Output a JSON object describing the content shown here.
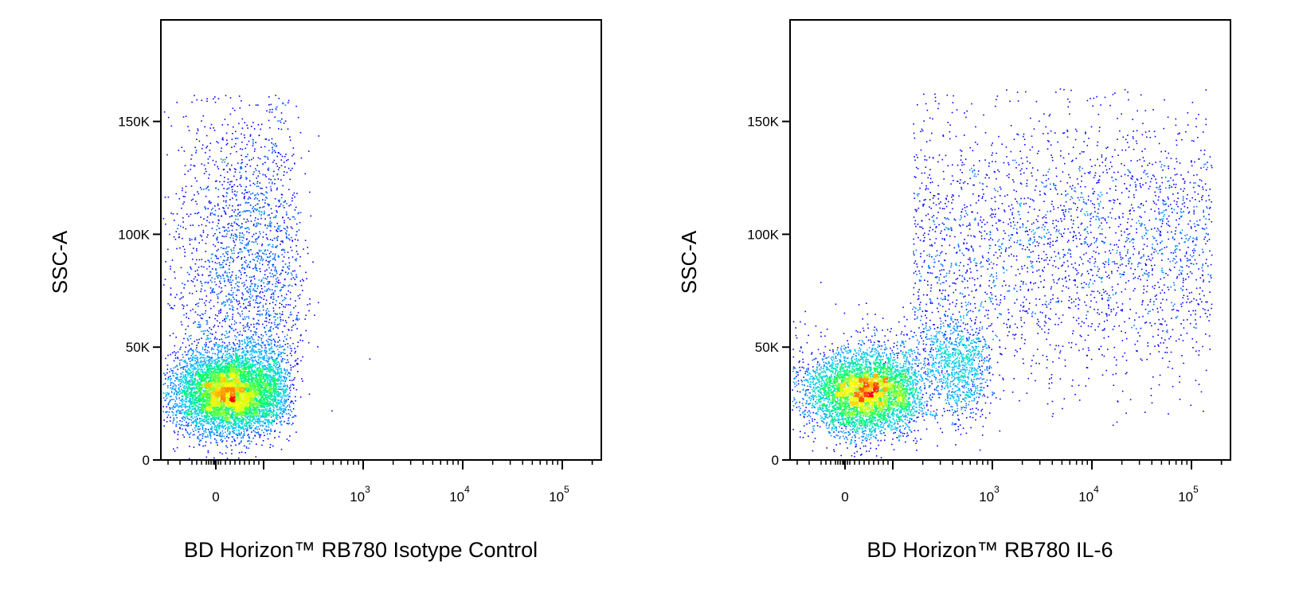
{
  "chart_data": [
    {
      "type": "scatter",
      "subtype": "flow-cytometry-density-dot-plot",
      "title": "",
      "xlabel": "BD Horizon™ RB780 Isotype Control",
      "ylabel": "SSC-A",
      "xscale": "biexponential",
      "xlim": [
        -250,
        200000
      ],
      "ylim": [
        0,
        195000
      ],
      "x_ticks": [
        {
          "value": 0,
          "label": "0",
          "exp": ""
        },
        {
          "value": 1000,
          "label": "10",
          "exp": "3"
        },
        {
          "value": 10000,
          "label": "10",
          "exp": "4"
        },
        {
          "value": 100000,
          "label": "10",
          "exp": "5"
        }
      ],
      "y_ticks": [
        {
          "value": 0,
          "label": "0"
        },
        {
          "value": 50000,
          "label": "50K"
        },
        {
          "value": 100000,
          "label": "100K"
        },
        {
          "value": 150000,
          "label": "150K"
        }
      ],
      "grid": false,
      "populations": [
        {
          "name": "",
          "x_center": 30,
          "x_spread": 60,
          "y_center": 30000,
          "y_spread": 9000,
          "fraction": 0.75
        },
        {
          "name": "",
          "x_center": 60,
          "x_spread": 80,
          "y_center": 85000,
          "y_spread": 38000,
          "y_range": [
            20000,
            162000
          ],
          "fraction": 0.25
        }
      ],
      "outliers": [
        [
          1150,
          45000
        ],
        [
          480,
          22000
        ],
        [
          350,
          70000
        ],
        [
          210,
          157000
        ]
      ],
      "color_scale": [
        "#0000ff",
        "#00c8ff",
        "#00ff60",
        "#ffff00",
        "#ff0000"
      ]
    },
    {
      "type": "scatter",
      "subtype": "flow-cytometry-density-dot-plot",
      "title": "",
      "xlabel": "BD Horizon™ RB780 IL-6",
      "ylabel": "SSC-A",
      "xscale": "biexponential",
      "xlim": [
        -250,
        200000
      ],
      "ylim": [
        0,
        195000
      ],
      "x_ticks": [
        {
          "value": 0,
          "label": "0",
          "exp": ""
        },
        {
          "value": 1000,
          "label": "10",
          "exp": "3"
        },
        {
          "value": 10000,
          "label": "10",
          "exp": "4"
        },
        {
          "value": 100000,
          "label": "10",
          "exp": "5"
        }
      ],
      "y_ticks": [
        {
          "value": 0,
          "label": "0"
        },
        {
          "value": 50000,
          "label": "50K"
        },
        {
          "value": 100000,
          "label": "100K"
        },
        {
          "value": 150000,
          "label": "150K"
        }
      ],
      "grid": false,
      "populations": [
        {
          "name": "",
          "x_center": 40,
          "x_spread": 60,
          "y_center": 30000,
          "y_spread": 9000,
          "fraction": 0.55
        },
        {
          "name": "",
          "x_center": 350,
          "x_spread": 250,
          "y_center": 42000,
          "y_spread": 13000,
          "fraction": 0.15
        },
        {
          "name": "",
          "log_x_range": [
            2.2,
            5.2
          ],
          "y_center": 95000,
          "y_spread": 30000,
          "y_range": [
            15000,
            165000
          ],
          "fraction": 0.3
        }
      ],
      "color_scale": [
        "#0000ff",
        "#00c8ff",
        "#00ff60",
        "#ffff00",
        "#ff0000"
      ]
    }
  ]
}
